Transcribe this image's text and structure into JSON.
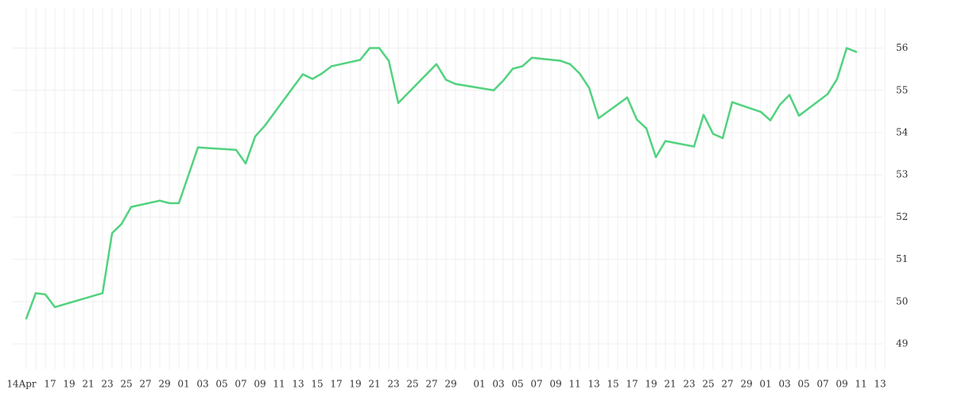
{
  "chart_data": {
    "type": "line",
    "color": "#52d27f",
    "grid": true,
    "categories": [
      "14Apr",
      null,
      null,
      "17",
      null,
      "19",
      null,
      "21",
      null,
      "23",
      null,
      "25",
      null,
      "27",
      null,
      "29",
      null,
      "01",
      null,
      "03",
      null,
      "05",
      null,
      "07",
      null,
      "09",
      null,
      "11",
      null,
      "13",
      null,
      "15",
      null,
      "17",
      null,
      "19",
      null,
      "21",
      null,
      "23",
      null,
      "25",
      null,
      "27",
      null,
      "29",
      null,
      null,
      "01",
      null,
      "03",
      null,
      "05",
      null,
      "07",
      null,
      "09",
      null,
      "11",
      null,
      "13",
      null,
      "15",
      null,
      "17",
      null,
      "19",
      null,
      "21",
      null,
      "23",
      null,
      "25",
      null,
      "27",
      null,
      "29",
      null,
      "01",
      null,
      "03",
      null,
      "05",
      null,
      "07",
      null,
      "09",
      null,
      "11",
      null,
      "13"
    ],
    "values": [
      49.6,
      50.2,
      50.17,
      49.87,
      null,
      null,
      null,
      null,
      50.2,
      51.62,
      51.84,
      52.24,
      null,
      null,
      52.39,
      52.33,
      52.33,
      null,
      53.65,
      null,
      null,
      null,
      53.59,
      53.27,
      53.91,
      54.16,
      null,
      null,
      55.08,
      55.38,
      55.27,
      55.4,
      55.57,
      null,
      null,
      55.72,
      56,
      56,
      55.7,
      54.7,
      null,
      null,
      null,
      55.62,
      55.25,
      55.15,
      null,
      null,
      null,
      55,
      55.23,
      55.51,
      55.57,
      55.77,
      null,
      null,
      55.7,
      55.62,
      55.4,
      55.06,
      54.34,
      null,
      null,
      54.83,
      54.31,
      54.1,
      53.42,
      53.8,
      null,
      null,
      53.67,
      54.42,
      53.97,
      53.87,
      54.72,
      null,
      null,
      54.49,
      54.29,
      54.66,
      54.89,
      54.4,
      null,
      null,
      54.91,
      55.27,
      56,
      55.91,
      null,
      null,
      null
    ],
    "ylim": [
      48.4,
      56.95
    ],
    "yticks": [
      49,
      50,
      51,
      52,
      53,
      54,
      55,
      56
    ]
  }
}
